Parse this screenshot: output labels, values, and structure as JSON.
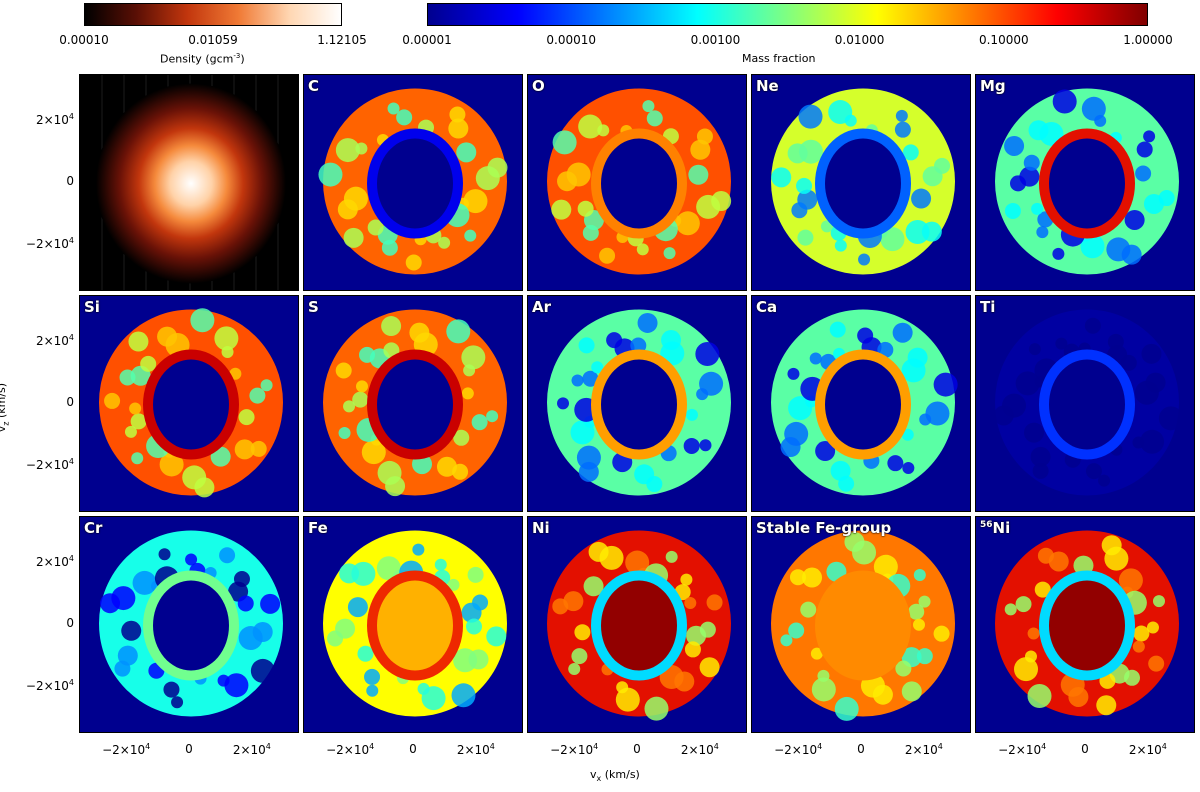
{
  "chart_data": {
    "type": "heatmap",
    "density_colorbar": {
      "title": "Density (gcm",
      "title_sup": "-3",
      "title_end": ")",
      "tick_labels": [
        "0.00010",
        "0.01059",
        "1.12105"
      ],
      "colors": [
        "#000000",
        "#5a0f05",
        "#c2360d",
        "#f07a35",
        "#ffd7b3",
        "#ffffff"
      ]
    },
    "fraction_colorbar": {
      "title": "Mass fraction",
      "tick_labels": [
        "0.00001",
        "0.00010",
        "0.00100",
        "0.01000",
        "0.10000",
        "1.00000"
      ],
      "colors": [
        "#00008f",
        "#0000ff",
        "#0080ff",
        "#00ffff",
        "#80ff80",
        "#ffff00",
        "#ff8000",
        "#ff0000",
        "#800000"
      ]
    },
    "x_axis": {
      "title": "v",
      "sub": "x",
      "unit": " (km/s)",
      "ticks": [
        -20000,
        0,
        20000
      ],
      "range": [
        -35000,
        35000
      ]
    },
    "y_axis": {
      "title": "v",
      "sub": "z",
      "unit": " (km/s)",
      "ticks": [
        20000,
        0,
        -20000
      ],
      "range": [
        -35000,
        35000
      ]
    },
    "tick_text": {
      "neg": "−2×10",
      "zero": "0",
      "pos": "2×10",
      "exp": "4"
    },
    "panels": [
      {
        "label": "",
        "sup": "",
        "kind": "density"
      },
      {
        "label": "C",
        "sup": "",
        "shell": 0.78,
        "core": 0.0,
        "rim": 0.1
      },
      {
        "label": "O",
        "sup": "",
        "shell": 0.8,
        "core": 0.0,
        "rim": 0.75
      },
      {
        "label": "Ne",
        "sup": "",
        "shell": 0.58,
        "core": 0.0,
        "rim": 0.2
      },
      {
        "label": "Mg",
        "sup": "",
        "shell": 0.45,
        "core": 0.0,
        "rim": 0.88
      },
      {
        "label": "Si",
        "sup": "",
        "shell": 0.8,
        "core": 0.0,
        "rim": 0.92
      },
      {
        "label": "S",
        "sup": "",
        "shell": 0.78,
        "core": 0.0,
        "rim": 0.92
      },
      {
        "label": "Ar",
        "sup": "",
        "shell": 0.45,
        "core": 0.0,
        "rim": 0.72
      },
      {
        "label": "Ca",
        "sup": "",
        "shell": 0.45,
        "core": 0.0,
        "rim": 0.72
      },
      {
        "label": "Ti",
        "sup": "",
        "shell": 0.02,
        "core": 0.0,
        "rim": 0.16
      },
      {
        "label": "Cr",
        "sup": "",
        "shell": 0.36,
        "core": 0.0,
        "rim": 0.48
      },
      {
        "label": "Fe",
        "sup": "",
        "shell": 0.62,
        "core": 0.7,
        "rim": 0.85
      },
      {
        "label": "Ni",
        "sup": "",
        "shell": 0.88,
        "core": 0.98,
        "rim": 0.3
      },
      {
        "label": "Stable Fe-group",
        "sup": "",
        "shell": 0.76,
        "core": 0.74,
        "rim": 0.74
      },
      {
        "label": "Ni",
        "sup": "56",
        "shell": 0.88,
        "core": 0.98,
        "rim": 0.3
      }
    ]
  }
}
